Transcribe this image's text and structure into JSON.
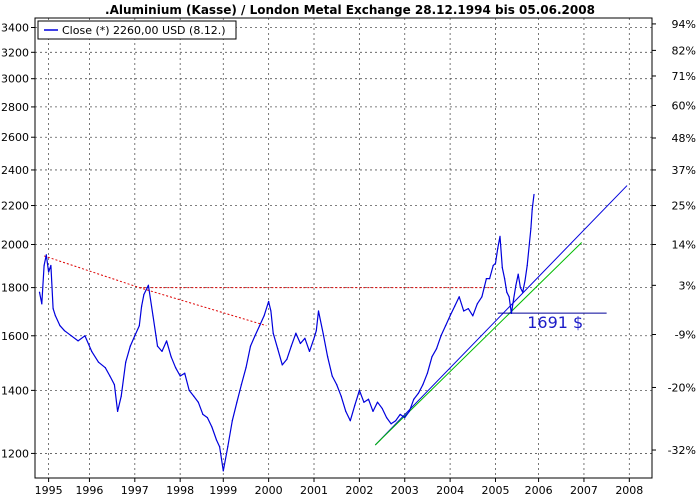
{
  "chart_data": {
    "type": "line",
    "title": ".Aluminium (Kasse) / London Metal Exchange 28.12.1994  bis 05.06.2008",
    "legend": {
      "label": "Close (*) 2260,00 USD (8.12.)",
      "placement": "top-left"
    },
    "x_tick_labels": [
      "1995",
      "1996",
      "1997",
      "1998",
      "1999",
      "2000",
      "2001",
      "2002",
      "2003",
      "2004",
      "2005",
      "2006",
      "2007",
      "2008"
    ],
    "x_ticks": [
      1995.2,
      1996.1,
      1997.1,
      1998.1,
      1999.05,
      2000.05,
      2001.05,
      2002.05,
      2003.05,
      2004.05,
      2005.05,
      2006.0,
      2007.0,
      2008.0
    ],
    "xlim": [
      1994.9,
      2008.5
    ],
    "y_tick_labels": [
      "3400",
      "3200",
      "3000",
      "2800",
      "2600",
      "2400",
      "2200",
      "2000",
      "1800",
      "1600",
      "1400",
      "1200"
    ],
    "y_ticks": [
      3400,
      3200,
      3000,
      2800,
      2600,
      2400,
      2200,
      2000,
      1800,
      1600,
      1400,
      1200
    ],
    "ylim": [
      1130,
      3480
    ],
    "y_scale": "log",
    "right_axis_labels": [
      "94%",
      "82%",
      "71%",
      "60%",
      "48%",
      "37%",
      "25%",
      "14%",
      "3%",
      "-9%",
      "-20%",
      "-32%"
    ],
    "right_axis_values": [
      3430,
      3215,
      3020,
      2810,
      2595,
      2400,
      2200,
      2000,
      1810,
      1605,
      1410,
      1210
    ],
    "grid": true,
    "line_color": "#0000dd",
    "series": [
      {
        "name": "Close",
        "x": [
          1995.0,
          1995.05,
          1995.1,
          1995.15,
          1995.2,
          1995.25,
          1995.3,
          1995.35,
          1995.45,
          1995.55,
          1995.7,
          1995.85,
          1996.0,
          1996.15,
          1996.3,
          1996.45,
          1996.55,
          1996.65,
          1996.72,
          1996.8,
          1996.9,
          1997.0,
          1997.1,
          1997.2,
          1997.25,
          1997.3,
          1997.4,
          1997.5,
          1997.6,
          1997.7,
          1997.8,
          1997.9,
          1998.0,
          1998.1,
          1998.2,
          1998.3,
          1998.4,
          1998.5,
          1998.6,
          1998.7,
          1998.8,
          1998.9,
          1998.97,
          1999.05,
          1999.15,
          1999.25,
          1999.35,
          1999.45,
          1999.55,
          1999.65,
          1999.75,
          1999.85,
          1999.95,
          2000.05,
          2000.1,
          2000.15,
          2000.25,
          2000.35,
          2000.45,
          2000.55,
          2000.65,
          2000.75,
          2000.85,
          2000.95,
          2001.05,
          2001.1,
          2001.15,
          2001.25,
          2001.35,
          2001.45,
          2001.55,
          2001.65,
          2001.75,
          2001.85,
          2001.95,
          2002.05,
          2002.15,
          2002.25,
          2002.35,
          2002.45,
          2002.55,
          2002.65,
          2002.75,
          2002.85,
          2002.95,
          2003.05,
          2003.15,
          2003.25,
          2003.35,
          2003.45,
          2003.55,
          2003.65,
          2003.75,
          2003.85,
          2003.95,
          2004.05,
          2004.15,
          2004.25,
          2004.35,
          2004.45,
          2004.55,
          2004.65,
          2004.75,
          2004.85,
          2004.92,
          2005.0,
          2005.05,
          2005.1,
          2005.15,
          2005.2,
          2005.25,
          2005.3,
          2005.35,
          2005.4,
          2005.45,
          2005.5,
          2005.55,
          2005.6,
          2005.65,
          2005.7,
          2005.75,
          2005.8,
          2005.83,
          2005.86,
          2005.9
        ],
        "y": [
          1780,
          1730,
          1900,
          1950,
          1870,
          1900,
          1710,
          1680,
          1640,
          1620,
          1600,
          1580,
          1600,
          1540,
          1500,
          1480,
          1450,
          1420,
          1330,
          1380,
          1500,
          1560,
          1600,
          1640,
          1720,
          1770,
          1810,
          1680,
          1560,
          1540,
          1580,
          1520,
          1480,
          1450,
          1460,
          1400,
          1380,
          1360,
          1320,
          1310,
          1280,
          1240,
          1220,
          1150,
          1220,
          1300,
          1360,
          1420,
          1480,
          1560,
          1600,
          1640,
          1680,
          1740,
          1700,
          1610,
          1550,
          1490,
          1510,
          1560,
          1610,
          1570,
          1590,
          1540,
          1590,
          1620,
          1700,
          1610,
          1520,
          1450,
          1420,
          1380,
          1330,
          1300,
          1350,
          1400,
          1360,
          1370,
          1330,
          1360,
          1340,
          1310,
          1290,
          1300,
          1320,
          1310,
          1330,
          1370,
          1390,
          1420,
          1460,
          1520,
          1550,
          1600,
          1640,
          1680,
          1720,
          1760,
          1700,
          1710,
          1680,
          1730,
          1760,
          1840,
          1840,
          1900,
          1910,
          1980,
          2040,
          1890,
          1840,
          1780,
          1760,
          1690,
          1750,
          1810,
          1860,
          1800,
          1780,
          1830,
          1900,
          2010,
          2080,
          2180,
          2260
        ]
      }
    ],
    "trendlines": [
      {
        "name": "resistance-1",
        "color": "#dd0000",
        "dash": true,
        "x": [
          1995.1,
          1997.2
        ],
        "y": [
          1945,
          1800
        ]
      },
      {
        "name": "resistance-2",
        "color": "#dd0000",
        "dash": true,
        "x": [
          1997.2,
          2000.0
        ],
        "y": [
          1800,
          1640
        ]
      },
      {
        "name": "resistance-horizontal",
        "color": "#dd0000",
        "dash": true,
        "x": [
          1997.2,
          2005.0
        ],
        "y": [
          1800,
          1800
        ]
      },
      {
        "name": "support-blue",
        "color": "#0000dd",
        "dash": false,
        "x": [
          2002.4,
          2007.95
        ],
        "y": [
          1225,
          2310
        ]
      },
      {
        "name": "support-green",
        "color": "#00bb00",
        "dash": false,
        "x": [
          2002.4,
          2006.95
        ],
        "y": [
          1225,
          2010
        ]
      },
      {
        "name": "level-1691",
        "color": "#000099",
        "dash": false,
        "x": [
          2005.1,
          2007.5
        ],
        "y": [
          1691,
          1691
        ]
      }
    ],
    "annotations": [
      {
        "text": "1691 $",
        "x": 2005.75,
        "y": 1630
      }
    ]
  }
}
